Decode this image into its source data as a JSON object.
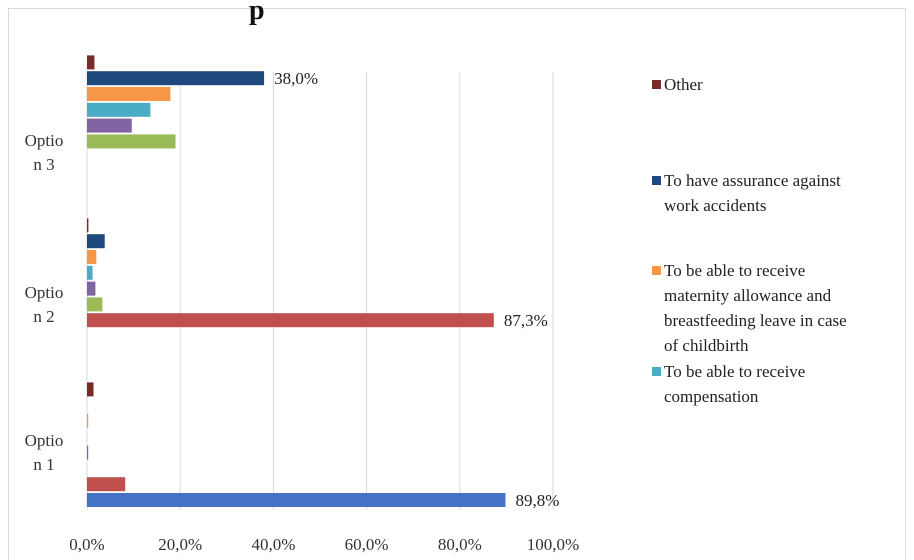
{
  "chart_data": {
    "type": "bar",
    "orientation": "horizontal",
    "title": "",
    "title_visible_fragment": "p",
    "categories": [
      "Optio n 1",
      "Optio n 2",
      "Optio n 3"
    ],
    "category_lines": [
      [
        "Optio",
        "n 1"
      ],
      [
        "Optio",
        "n 2"
      ],
      [
        "Optio",
        "n 3"
      ]
    ],
    "xlim": [
      0,
      100
    ],
    "x_ticks": [
      "0,0%",
      "20,0%",
      "40,0%",
      "60,0%",
      "80,0%",
      "100,0%"
    ],
    "grid": true,
    "legend_position": "right",
    "series": [
      {
        "name": "",
        "color": "#4472c4",
        "values": [
          89.8,
          0,
          0
        ]
      },
      {
        "name": "",
        "color": "#c0504d",
        "values": [
          8.2,
          87.3,
          0
        ]
      },
      {
        "name": "",
        "color": "#9bbb59",
        "values": [
          0,
          3.3,
          19.0
        ]
      },
      {
        "name": "",
        "color": "#8064a2",
        "values": [
          0.2,
          1.8,
          9.6
        ]
      },
      {
        "name": "To be able to receive compensation",
        "color": "#4bacc6",
        "values": [
          0,
          1.2,
          13.6
        ]
      },
      {
        "name": "To be able to receive maternity allowance and breastfeeding leave in case of childbirth",
        "color": "#f79646",
        "values": [
          0.2,
          2.0,
          17.9
        ]
      },
      {
        "name": "To have assurance against work accidents",
        "color": "#1f497d",
        "values": [
          0,
          3.8,
          38.0
        ]
      },
      {
        "name": "Other",
        "color": "#772c2a",
        "values": [
          1.4,
          0.3,
          1.6
        ]
      }
    ],
    "data_labels": [
      {
        "series": 0,
        "category": 0,
        "text": "89,8%"
      },
      {
        "series": 1,
        "category": 1,
        "text": "87,3%"
      },
      {
        "series": 6,
        "category": 2,
        "text": "38,0%"
      }
    ],
    "legend": [
      {
        "series": 7,
        "lines": [
          "Other"
        ]
      },
      {
        "series": 6,
        "lines": [
          "To have assurance against",
          "work accidents"
        ]
      },
      {
        "series": 5,
        "lines": [
          "To be able to receive",
          "maternity allowance and",
          "breastfeeding leave in case",
          "of childbirth"
        ]
      },
      {
        "series": 4,
        "lines": [
          "To be able to receive",
          "compensation"
        ]
      }
    ]
  }
}
